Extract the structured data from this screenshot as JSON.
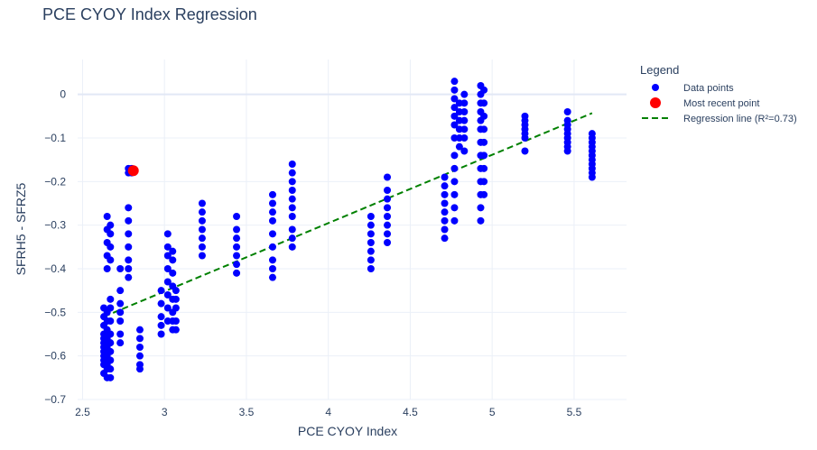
{
  "chart_data": {
    "type": "scatter",
    "title": "PCE CYOY Index Regression",
    "xlabel": "PCE CYOY Index",
    "ylabel": "SFRH5 - SFRZ5",
    "xlim": [
      2.47,
      5.82
    ],
    "ylim": [
      -0.7,
      0.08
    ],
    "x_ticks": [
      2.5,
      3,
      3.5,
      4,
      4.5,
      5,
      5.5
    ],
    "x_tick_labels": [
      "2.5",
      "3",
      "3.5",
      "4",
      "4.5",
      "5",
      "5.5"
    ],
    "y_ticks": [
      -0.7,
      -0.6,
      -0.5,
      -0.4,
      -0.3,
      -0.2,
      -0.1,
      0
    ],
    "y_tick_labels": [
      "−0.7",
      "−0.6",
      "−0.5",
      "−0.4",
      "−0.3",
      "−0.2",
      "−0.1",
      "0"
    ],
    "grid": true,
    "legend": {
      "title": "Legend",
      "position": "top-right-outside",
      "entries": [
        {
          "label": "Data points",
          "color": "#0000ff",
          "marker": "circle"
        },
        {
          "label": "Most recent point",
          "color": "#ff0000",
          "marker": "circle"
        },
        {
          "label": "Regression line (R²=0.73)",
          "color": "#008000",
          "marker": "dash"
        }
      ]
    },
    "colors": {
      "points": "#0000ff",
      "recent": "#ff0000",
      "regression": "#008000"
    },
    "series": [
      {
        "name": "Data points",
        "points": [
          [
            2.63,
            -0.64
          ],
          [
            2.63,
            -0.62
          ],
          [
            2.63,
            -0.61
          ],
          [
            2.63,
            -0.6
          ],
          [
            2.63,
            -0.59
          ],
          [
            2.63,
            -0.58
          ],
          [
            2.63,
            -0.57
          ],
          [
            2.63,
            -0.56
          ],
          [
            2.63,
            -0.55
          ],
          [
            2.63,
            -0.53
          ],
          [
            2.63,
            -0.51
          ],
          [
            2.63,
            -0.49
          ],
          [
            2.65,
            -0.65
          ],
          [
            2.65,
            -0.63
          ],
          [
            2.65,
            -0.62
          ],
          [
            2.65,
            -0.6
          ],
          [
            2.65,
            -0.58
          ],
          [
            2.65,
            -0.56
          ],
          [
            2.65,
            -0.54
          ],
          [
            2.65,
            -0.52
          ],
          [
            2.65,
            -0.5
          ],
          [
            2.65,
            -0.4
          ],
          [
            2.65,
            -0.37
          ],
          [
            2.65,
            -0.34
          ],
          [
            2.65,
            -0.31
          ],
          [
            2.65,
            -0.28
          ],
          [
            2.67,
            -0.65
          ],
          [
            2.67,
            -0.63
          ],
          [
            2.67,
            -0.61
          ],
          [
            2.67,
            -0.59
          ],
          [
            2.67,
            -0.57
          ],
          [
            2.67,
            -0.55
          ],
          [
            2.67,
            -0.52
          ],
          [
            2.67,
            -0.49
          ],
          [
            2.67,
            -0.47
          ],
          [
            2.67,
            -0.38
          ],
          [
            2.67,
            -0.35
          ],
          [
            2.67,
            -0.32
          ],
          [
            2.67,
            -0.3
          ],
          [
            2.73,
            -0.57
          ],
          [
            2.73,
            -0.55
          ],
          [
            2.73,
            -0.52
          ],
          [
            2.73,
            -0.5
          ],
          [
            2.73,
            -0.48
          ],
          [
            2.73,
            -0.45
          ],
          [
            2.73,
            -0.4
          ],
          [
            2.78,
            -0.42
          ],
          [
            2.78,
            -0.4
          ],
          [
            2.78,
            -0.38
          ],
          [
            2.78,
            -0.35
          ],
          [
            2.78,
            -0.32
          ],
          [
            2.78,
            -0.29
          ],
          [
            2.78,
            -0.26
          ],
          [
            2.78,
            -0.17
          ],
          [
            2.78,
            -0.18
          ],
          [
            2.8,
            -0.18
          ],
          [
            2.8,
            -0.17
          ],
          [
            2.85,
            -0.63
          ],
          [
            2.85,
            -0.62
          ],
          [
            2.85,
            -0.6
          ],
          [
            2.85,
            -0.58
          ],
          [
            2.85,
            -0.56
          ],
          [
            2.85,
            -0.54
          ],
          [
            2.98,
            -0.55
          ],
          [
            2.98,
            -0.53
          ],
          [
            2.98,
            -0.51
          ],
          [
            2.98,
            -0.48
          ],
          [
            2.98,
            -0.45
          ],
          [
            3.02,
            -0.52
          ],
          [
            3.02,
            -0.49
          ],
          [
            3.02,
            -0.46
          ],
          [
            3.02,
            -0.43
          ],
          [
            3.02,
            -0.4
          ],
          [
            3.02,
            -0.37
          ],
          [
            3.02,
            -0.35
          ],
          [
            3.02,
            -0.32
          ],
          [
            3.05,
            -0.54
          ],
          [
            3.05,
            -0.52
          ],
          [
            3.05,
            -0.5
          ],
          [
            3.05,
            -0.47
          ],
          [
            3.05,
            -0.44
          ],
          [
            3.05,
            -0.41
          ],
          [
            3.05,
            -0.38
          ],
          [
            3.05,
            -0.36
          ],
          [
            3.07,
            -0.54
          ],
          [
            3.07,
            -0.52
          ],
          [
            3.07,
            -0.49
          ],
          [
            3.07,
            -0.47
          ],
          [
            3.07,
            -0.45
          ],
          [
            3.23,
            -0.37
          ],
          [
            3.23,
            -0.35
          ],
          [
            3.23,
            -0.33
          ],
          [
            3.23,
            -0.31
          ],
          [
            3.23,
            -0.29
          ],
          [
            3.23,
            -0.27
          ],
          [
            3.23,
            -0.25
          ],
          [
            3.44,
            -0.41
          ],
          [
            3.44,
            -0.39
          ],
          [
            3.44,
            -0.37
          ],
          [
            3.44,
            -0.35
          ],
          [
            3.44,
            -0.33
          ],
          [
            3.44,
            -0.31
          ],
          [
            3.44,
            -0.28
          ],
          [
            3.66,
            -0.42
          ],
          [
            3.66,
            -0.4
          ],
          [
            3.66,
            -0.38
          ],
          [
            3.66,
            -0.35
          ],
          [
            3.66,
            -0.32
          ],
          [
            3.66,
            -0.29
          ],
          [
            3.66,
            -0.27
          ],
          [
            3.66,
            -0.25
          ],
          [
            3.66,
            -0.23
          ],
          [
            3.78,
            -0.35
          ],
          [
            3.78,
            -0.33
          ],
          [
            3.78,
            -0.31
          ],
          [
            3.78,
            -0.28
          ],
          [
            3.78,
            -0.26
          ],
          [
            3.78,
            -0.24
          ],
          [
            3.78,
            -0.22
          ],
          [
            3.78,
            -0.2
          ],
          [
            3.78,
            -0.18
          ],
          [
            3.78,
            -0.16
          ],
          [
            4.26,
            -0.4
          ],
          [
            4.26,
            -0.38
          ],
          [
            4.26,
            -0.36
          ],
          [
            4.26,
            -0.34
          ],
          [
            4.26,
            -0.32
          ],
          [
            4.26,
            -0.3
          ],
          [
            4.26,
            -0.28
          ],
          [
            4.36,
            -0.34
          ],
          [
            4.36,
            -0.32
          ],
          [
            4.36,
            -0.3
          ],
          [
            4.36,
            -0.28
          ],
          [
            4.36,
            -0.26
          ],
          [
            4.36,
            -0.24
          ],
          [
            4.36,
            -0.22
          ],
          [
            4.36,
            -0.19
          ],
          [
            4.71,
            -0.33
          ],
          [
            4.71,
            -0.31
          ],
          [
            4.71,
            -0.29
          ],
          [
            4.71,
            -0.27
          ],
          [
            4.71,
            -0.25
          ],
          [
            4.71,
            -0.23
          ],
          [
            4.71,
            -0.21
          ],
          [
            4.71,
            -0.19
          ],
          [
            4.77,
            -0.29
          ],
          [
            4.77,
            -0.26
          ],
          [
            4.77,
            -0.23
          ],
          [
            4.77,
            -0.2
          ],
          [
            4.77,
            -0.17
          ],
          [
            4.77,
            -0.14
          ],
          [
            4.77,
            -0.1
          ],
          [
            4.77,
            -0.07
          ],
          [
            4.77,
            -0.05
          ],
          [
            4.77,
            -0.03
          ],
          [
            4.77,
            -0.01
          ],
          [
            4.77,
            0.01
          ],
          [
            4.77,
            0.03
          ],
          [
            4.8,
            -0.12
          ],
          [
            4.8,
            -0.1
          ],
          [
            4.8,
            -0.08
          ],
          [
            4.8,
            -0.06
          ],
          [
            4.8,
            -0.04
          ],
          [
            4.8,
            -0.02
          ],
          [
            4.83,
            -0.13
          ],
          [
            4.83,
            -0.1
          ],
          [
            4.83,
            -0.08
          ],
          [
            4.83,
            -0.06
          ],
          [
            4.83,
            -0.04
          ],
          [
            4.83,
            -0.02
          ],
          [
            4.83,
            0.0
          ],
          [
            4.93,
            -0.29
          ],
          [
            4.93,
            -0.26
          ],
          [
            4.93,
            -0.23
          ],
          [
            4.93,
            -0.2
          ],
          [
            4.93,
            -0.17
          ],
          [
            4.93,
            -0.14
          ],
          [
            4.93,
            -0.11
          ],
          [
            4.93,
            -0.08
          ],
          [
            4.93,
            -0.06
          ],
          [
            4.93,
            -0.04
          ],
          [
            4.93,
            -0.02
          ],
          [
            4.93,
            0.0
          ],
          [
            4.93,
            0.02
          ],
          [
            4.95,
            -0.23
          ],
          [
            4.95,
            -0.2
          ],
          [
            4.95,
            -0.17
          ],
          [
            4.95,
            -0.14
          ],
          [
            4.95,
            -0.11
          ],
          [
            4.95,
            -0.08
          ],
          [
            4.95,
            -0.05
          ],
          [
            4.95,
            -0.02
          ],
          [
            4.95,
            0.01
          ],
          [
            5.2,
            -0.13
          ],
          [
            5.2,
            -0.1
          ],
          [
            5.2,
            -0.09
          ],
          [
            5.2,
            -0.08
          ],
          [
            5.2,
            -0.07
          ],
          [
            5.2,
            -0.06
          ],
          [
            5.2,
            -0.05
          ],
          [
            5.46,
            -0.13
          ],
          [
            5.46,
            -0.12
          ],
          [
            5.46,
            -0.11
          ],
          [
            5.46,
            -0.1
          ],
          [
            5.46,
            -0.09
          ],
          [
            5.46,
            -0.08
          ],
          [
            5.46,
            -0.07
          ],
          [
            5.46,
            -0.06
          ],
          [
            5.46,
            -0.04
          ],
          [
            5.61,
            -0.19
          ],
          [
            5.61,
            -0.18
          ],
          [
            5.61,
            -0.17
          ],
          [
            5.61,
            -0.16
          ],
          [
            5.61,
            -0.15
          ],
          [
            5.61,
            -0.14
          ],
          [
            5.61,
            -0.13
          ],
          [
            5.61,
            -0.12
          ],
          [
            5.61,
            -0.11
          ],
          [
            5.61,
            -0.1
          ],
          [
            5.61,
            -0.09
          ]
        ]
      },
      {
        "name": "Most recent point",
        "points": [
          [
            2.81,
            -0.175
          ]
        ]
      },
      {
        "name": "Regression line (R²=0.73)",
        "type": "line",
        "dash": true,
        "points": [
          [
            2.63,
            -0.51
          ],
          [
            5.61,
            -0.043
          ]
        ]
      }
    ]
  }
}
